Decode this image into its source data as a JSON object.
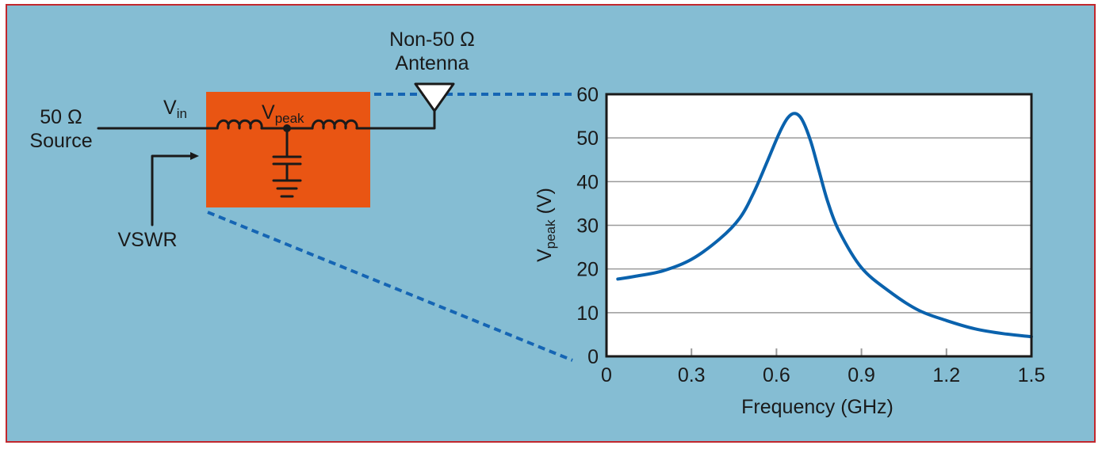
{
  "colors": {
    "background": "#85bdd3",
    "frame_border": "#c1272d",
    "filter_box": "#e95513",
    "curve": "#0a62ad",
    "dotted_leader": "#1565b4",
    "wire": "#1a1a1a",
    "plot_bg": "#ffffff",
    "grid": "#9a9a9a"
  },
  "circuit": {
    "source_label_line1": "50 Ω",
    "source_label_line2": "Source",
    "vin_main": "V",
    "vin_sub": "in",
    "vpeak_main": "V",
    "vpeak_sub": "peak",
    "vswr_label": "VSWR",
    "antenna_label_line1": "Non-50 Ω",
    "antenna_label_line2": "Antenna",
    "icons": [
      "inductor-icon",
      "capacitor-icon",
      "ground-icon",
      "antenna-icon",
      "arrow-icon"
    ]
  },
  "chart_data": {
    "type": "line",
    "xlabel": "Frequency (GHz)",
    "ylabel_main": "V",
    "ylabel_sub": "peak",
    "ylabel_unit": " (V)",
    "xlim": [
      0,
      1.5
    ],
    "ylim": [
      0,
      60
    ],
    "x_ticks": [
      0,
      0.3,
      0.6,
      0.9,
      1.2,
      1.5
    ],
    "x_tick_labels": [
      "0",
      "0.3",
      "0.6",
      "0.9",
      "1.2",
      "1.5"
    ],
    "y_ticks": [
      0,
      10,
      20,
      30,
      40,
      50,
      60
    ],
    "y_tick_labels": [
      "0",
      "10",
      "20",
      "30",
      "40",
      "50",
      "60"
    ],
    "grid": "horizontal",
    "series": [
      {
        "x": [
          0.04,
          0.1,
          0.2,
          0.3,
          0.4,
          0.47,
          0.52,
          0.57,
          0.61,
          0.64,
          0.665,
          0.69,
          0.72,
          0.75,
          0.78,
          0.82,
          0.9,
          1.0,
          1.1,
          1.2,
          1.3,
          1.4,
          1.5
        ],
        "y": [
          17.7,
          18.3,
          19.6,
          22.2,
          26.9,
          31.6,
          37.5,
          45.0,
          51.1,
          54.6,
          55.6,
          54.2,
          49.4,
          42.5,
          35.6,
          28.8,
          20.3,
          14.8,
          10.6,
          8.2,
          6.3,
          5.2,
          4.5
        ]
      }
    ]
  }
}
